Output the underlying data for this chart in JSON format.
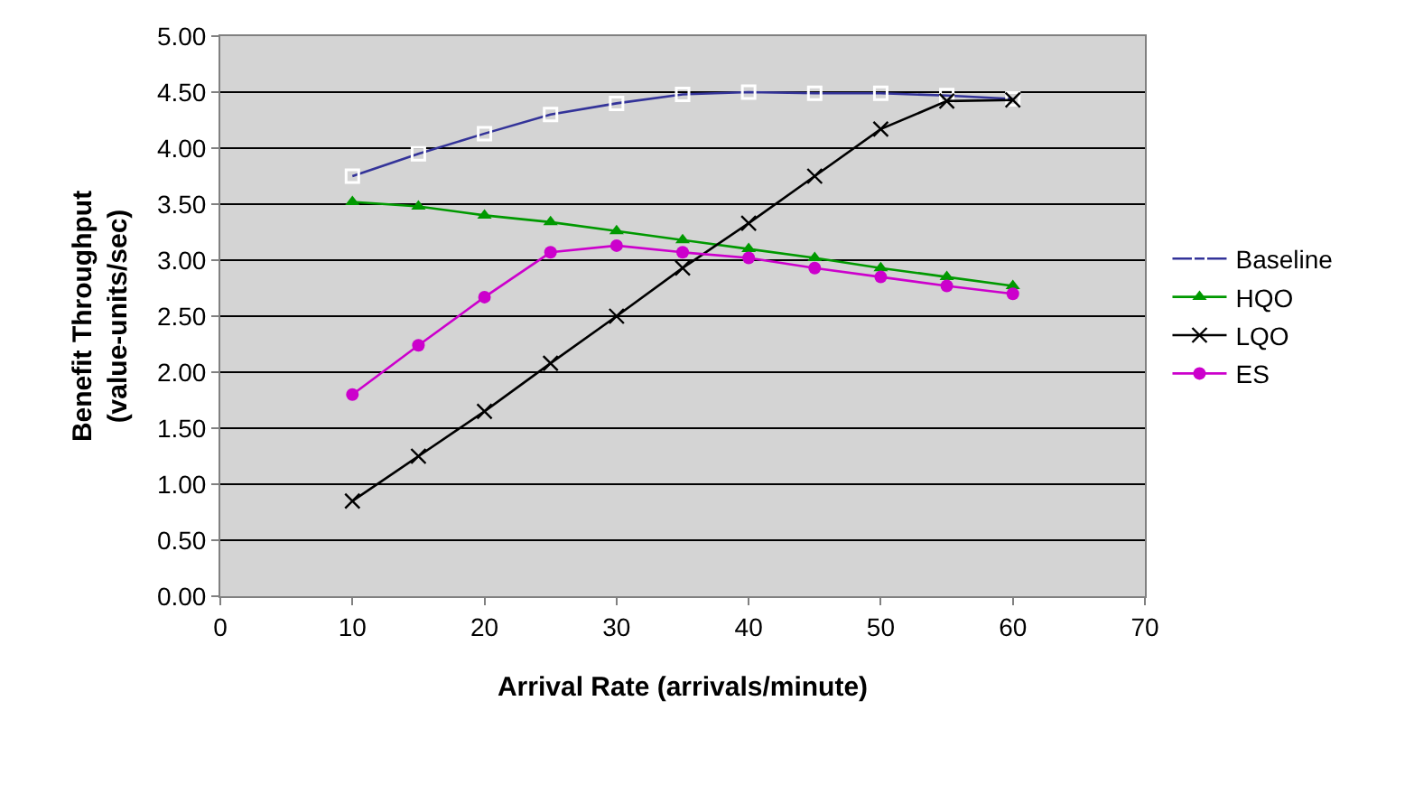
{
  "chart_data": {
    "type": "line",
    "xlabel": "Arrival Rate (arrivals/minute)",
    "ylabel": "Benefit Throughput\n(value-units/sec)",
    "x": [
      10,
      15,
      20,
      25,
      30,
      35,
      40,
      45,
      50,
      55,
      60
    ],
    "series": [
      {
        "name": "Baseline",
        "color": "#333399",
        "marker": "square",
        "values": [
          3.75,
          3.95,
          4.13,
          4.3,
          4.4,
          4.48,
          4.5,
          4.49,
          4.49,
          4.47,
          4.44
        ]
      },
      {
        "name": "HQO",
        "color": "#009900",
        "marker": "triangle",
        "values": [
          3.52,
          3.48,
          3.4,
          3.34,
          3.26,
          3.18,
          3.1,
          3.02,
          2.93,
          2.85,
          2.77
        ]
      },
      {
        "name": "LQO",
        "color": "#000000",
        "marker": "cross",
        "values": [
          0.85,
          1.25,
          1.65,
          2.08,
          2.5,
          2.93,
          3.33,
          3.75,
          4.17,
          4.42,
          4.43
        ]
      },
      {
        "name": "ES",
        "color": "#cc00cc",
        "marker": "circle",
        "values": [
          1.8,
          2.24,
          2.67,
          3.07,
          3.13,
          3.07,
          3.02,
          2.93,
          2.85,
          2.77,
          2.7
        ]
      }
    ],
    "xlim": [
      0,
      70
    ],
    "xticks": [
      0,
      10,
      20,
      30,
      40,
      50,
      60,
      70
    ],
    "ylim": [
      0,
      5
    ],
    "yticks": [
      {
        "value": 0,
        "label": "0.00"
      },
      {
        "value": 0.5,
        "label": "0.50"
      },
      {
        "value": 1,
        "label": "1.00"
      },
      {
        "value": 1.5,
        "label": "1.50"
      },
      {
        "value": 2,
        "label": "2.00"
      },
      {
        "value": 2.5,
        "label": "2.50"
      },
      {
        "value": 3,
        "label": "3.00"
      },
      {
        "value": 3.5,
        "label": "3.50"
      },
      {
        "value": 4,
        "label": "4.00"
      },
      {
        "value": 4.5,
        "label": "4.50"
      },
      {
        "value": 5,
        "label": "5.00"
      }
    ],
    "grid": "y",
    "legend": "right",
    "line_style": "solid"
  }
}
